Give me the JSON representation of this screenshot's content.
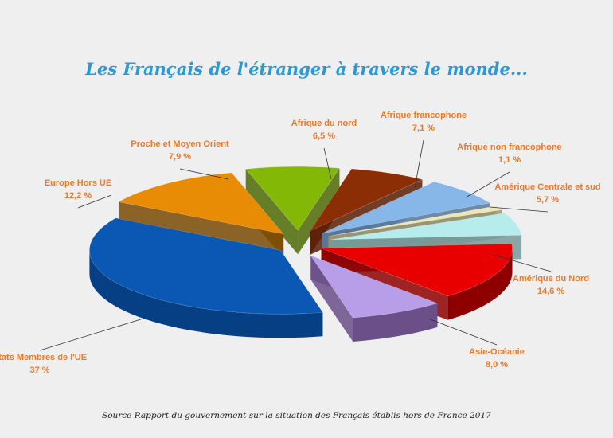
{
  "title": "Les Français de l'étranger à travers le monde...",
  "source": "Source Rapport du gouvernement sur la situation des Français établis hors de France 2017",
  "chart_data": {
    "type": "pie",
    "title": "Les Français de l'étranger à travers le monde...",
    "categories": [
      "Afrique du nord",
      "Afrique francophone",
      "Afrique non francophone",
      "Amérique Centrale et sud",
      "Amérique du Nord",
      "Asie-Océanie",
      "Etats Membres de l'UE",
      "Europe Hors UE",
      "Proche et Moyen Orient"
    ],
    "values": [
      6.5,
      7.1,
      1.1,
      5.7,
      14.6,
      8.0,
      37,
      12.2,
      7.9
    ],
    "value_labels": [
      "6,5 %",
      "7,1 %",
      "1,1 %",
      "5,7 %",
      "14,6 %",
      "8,0 %",
      "37 %",
      "12,2 %",
      "7,9 %"
    ],
    "colors": [
      "#8b2e06",
      "#86b7e8",
      "#eee7b4",
      "#b6eceb",
      "#e80000",
      "#b89de8",
      "#0a58b4",
      "#e88c06",
      "#84b806"
    ],
    "side_colors": [
      "#5a1d04",
      "#58789a",
      "#9a9576",
      "#769a99",
      "#8e0000",
      "#6a4f88",
      "#063f84",
      "#7a4a03",
      "#4c6a03"
    ]
  }
}
